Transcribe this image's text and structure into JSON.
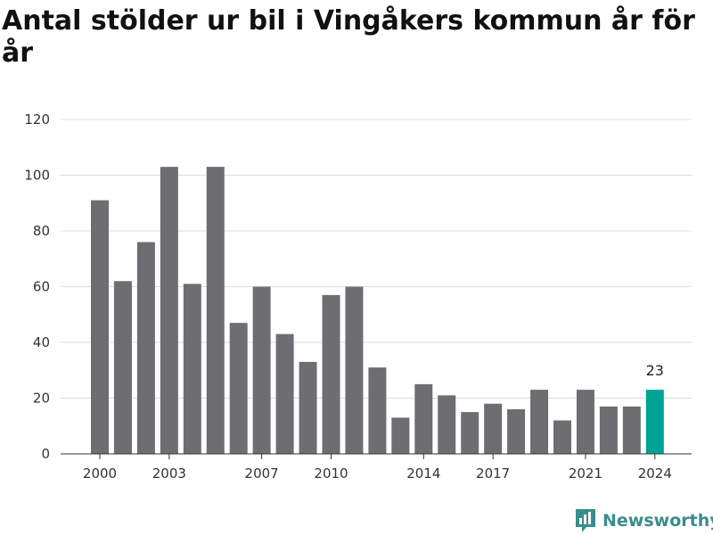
{
  "title": "Antal stölder ur bil i Vingåkers kommun år för år",
  "brand": {
    "name": "Newsworthy",
    "icon": "newsworthy-logo-icon",
    "color": "#3a8d8d"
  },
  "chart_data": {
    "type": "bar",
    "title": "Antal stölder ur bil i Vingåkers kommun år för år",
    "xlabel": "",
    "ylabel": "",
    "categories": [
      2000,
      2001,
      2002,
      2003,
      2004,
      2005,
      2006,
      2007,
      2008,
      2009,
      2010,
      2011,
      2012,
      2013,
      2014,
      2015,
      2016,
      2017,
      2018,
      2019,
      2020,
      2021,
      2022,
      2023,
      2024
    ],
    "values": [
      91,
      62,
      76,
      103,
      61,
      103,
      47,
      60,
      43,
      33,
      57,
      60,
      31,
      13,
      25,
      21,
      15,
      18,
      16,
      23,
      12,
      23,
      17,
      17,
      23
    ],
    "ylim": [
      0,
      120
    ],
    "yticks": [
      0,
      20,
      40,
      60,
      80,
      100,
      120
    ],
    "xticks": [
      2000,
      2003,
      2007,
      2010,
      2014,
      2017,
      2021,
      2024
    ],
    "grid": true,
    "bar_color": "#6e6d72",
    "highlight": {
      "category": 2024,
      "color": "#00a393",
      "label": "23"
    }
  }
}
